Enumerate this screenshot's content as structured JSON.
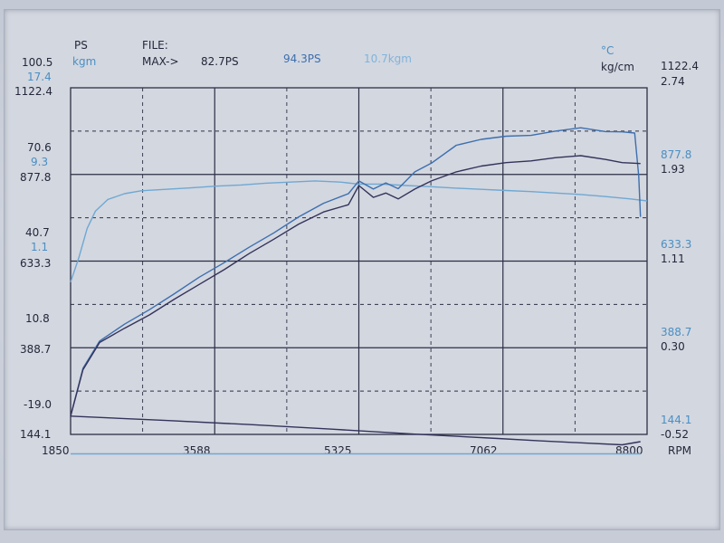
{
  "header": {
    "ps_label": "PS",
    "kgm_label": "kgm",
    "file_label": "FILE:",
    "max_label": "MAX->",
    "max_ps_1": "82.7PS",
    "max_ps_2": "94.3PS",
    "max_kgm": "10.7kgm",
    "degc_label": "°C",
    "kgcm_label": "kg/cm"
  },
  "chart_data": {
    "type": "line",
    "title": "",
    "xlabel": "RPM",
    "ylabel": "",
    "xlim": [
      1850,
      8800
    ],
    "xticks": [
      "1850",
      "3588",
      "5325",
      "7062",
      "8800"
    ],
    "grid": true,
    "left_axis_groups": [
      {
        "ps": "100.5",
        "kgm": "17.4",
        "temp": "1122.4"
      },
      {
        "ps": "70.6",
        "kgm": "9.3",
        "temp": "877.8"
      },
      {
        "ps": "40.7",
        "kgm": "1.1",
        "temp": "633.3"
      },
      {
        "ps": "10.8",
        "kgm": "",
        "temp": "388.7"
      },
      {
        "ps": "-19.0",
        "kgm": "",
        "temp": "144.1"
      }
    ],
    "right_axis_groups": [
      {
        "temp": "1122.4",
        "pressure": "2.74"
      },
      {
        "temp": "877.8",
        "pressure": "1.93"
      },
      {
        "temp": "633.3",
        "pressure": "1.11"
      },
      {
        "temp": "388.7",
        "pressure": "0.30"
      },
      {
        "temp": "144.1",
        "pressure": "-0.52"
      }
    ],
    "ps_range": [
      -19.0,
      100.5
    ],
    "colors": {
      "cyan": "#6fa8d2",
      "blue": "#3d6fae",
      "dark": "#34325a",
      "grid": "#2c2f44"
    },
    "series": [
      {
        "color": "cyan",
        "x": [
          1850,
          1950,
          2050,
          2150,
          2300,
          2500,
          2700,
          3000,
          3300,
          3600,
          3900,
          4200,
          4500,
          4800,
          5100,
          5325,
          5600,
          5900,
          6200,
          6500,
          6800,
          7100,
          7400,
          7700,
          8000,
          8300,
          8600,
          8800
        ],
        "y": [
          33.5,
          42,
          52,
          58,
          62,
          64,
          65,
          65.5,
          66,
          66.6,
          67,
          67.6,
          68,
          68.4,
          68,
          67.3,
          67.3,
          66.8,
          66.4,
          65.9,
          65.5,
          65.1,
          64.7,
          64.2,
          63.7,
          63,
          62.2,
          61.5
        ]
      },
      {
        "color": "blue",
        "x": [
          1850,
          2000,
          2200,
          2500,
          2800,
          3100,
          3400,
          3700,
          4000,
          4300,
          4600,
          4900,
          5200,
          5325,
          5500,
          5650,
          5800,
          6000,
          6200,
          6500,
          6800,
          7100,
          7400,
          7700,
          8000,
          8300,
          8500,
          8650,
          8700,
          8720
        ],
        "y": [
          -12.7,
          3.8,
          13.2,
          19,
          24,
          29.5,
          35.2,
          40.2,
          45.5,
          50.5,
          56,
          60.7,
          64,
          68.4,
          65.6,
          67.7,
          65.7,
          71.5,
          74.5,
          80.7,
          82.7,
          83.8,
          84.1,
          85.6,
          86.7,
          85.4,
          85.3,
          84.9,
          70,
          56
        ]
      },
      {
        "color": "dark",
        "x": [
          1850,
          2000,
          2200,
          2500,
          2800,
          3100,
          3400,
          3700,
          4000,
          4300,
          4600,
          4900,
          5200,
          5325,
          5500,
          5650,
          5800,
          6000,
          6200,
          6500,
          6800,
          7100,
          7400,
          7700,
          8000,
          8300,
          8500,
          8720
        ],
        "y": [
          -12.7,
          3.3,
          12.7,
          17.6,
          22.2,
          27.6,
          32.7,
          37.8,
          43.3,
          48.3,
          53.5,
          57.7,
          60.2,
          66.8,
          62.7,
          64.2,
          62.2,
          65.6,
          68.4,
          71.5,
          73.5,
          74.7,
          75.3,
          76.4,
          77.1,
          75.8,
          74.7,
          74.4
        ]
      },
      {
        "color": "dark",
        "x": [
          1850,
          3000,
          4000,
          5000,
          6000,
          7000,
          7500,
          8000,
          8500,
          8720
        ],
        "y": [
          -12.7,
          -14.2,
          -15.6,
          -17.2,
          -18.9,
          -20.4,
          -21.2,
          -21.9,
          -22.6,
          -21.5
        ]
      },
      {
        "color": "cyan",
        "x": [
          1850,
          8720
        ],
        "y": [
          -25.7,
          -25.7
        ]
      }
    ]
  }
}
